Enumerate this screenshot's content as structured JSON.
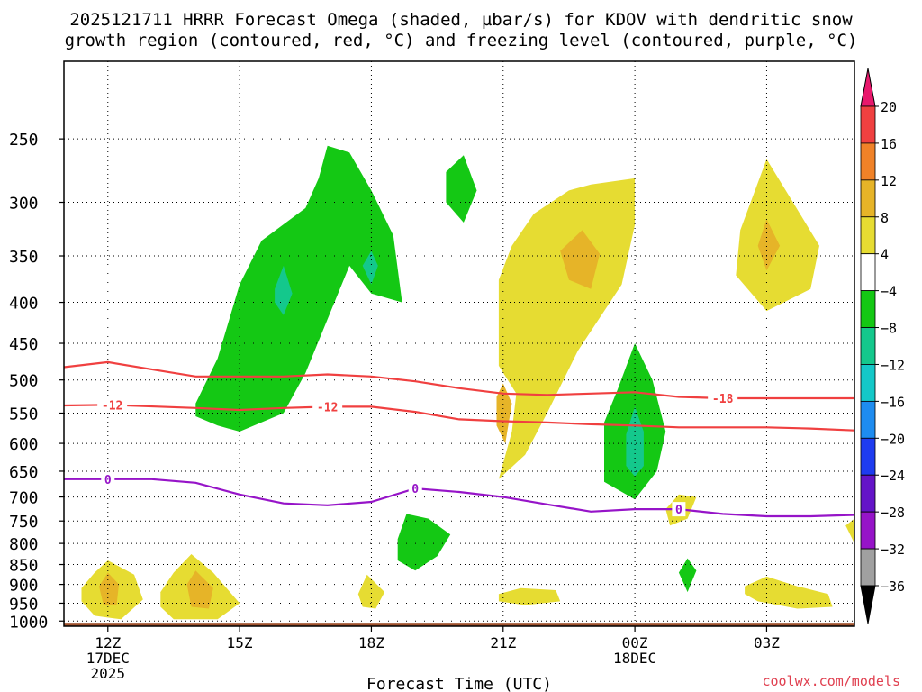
{
  "title_line1": "2025121711 HRRR Forecast Omega (shaded, µbar/s) for KDOV with dendritic snow",
  "title_line2": "growth region (contoured, red, °C) and freezing level (contoured, purple, °C)",
  "credit": "coolwx.com/models",
  "chart_data": {
    "type": "time-height cross section (filled contour + line contours)",
    "xlabel": "Forecast Time (UTC)",
    "ylabel": "",
    "x_ticks": [
      {
        "hour": 0,
        "label": "12Z",
        "sub1": "17DEC",
        "sub2": "2025"
      },
      {
        "hour": 3,
        "label": "15Z",
        "sub1": "",
        "sub2": ""
      },
      {
        "hour": 6,
        "label": "18Z",
        "sub1": "",
        "sub2": ""
      },
      {
        "hour": 9,
        "label": "21Z",
        "sub1": "",
        "sub2": ""
      },
      {
        "hour": 12,
        "label": "00Z",
        "sub1": "18DEC",
        "sub2": ""
      },
      {
        "hour": 15,
        "label": "03Z",
        "sub1": "",
        "sub2": ""
      }
    ],
    "xlim_hours": [
      -1,
      17
    ],
    "y_ticks_hPa": [
      250,
      300,
      350,
      400,
      450,
      500,
      550,
      600,
      650,
      700,
      750,
      800,
      850,
      900,
      950,
      1000
    ],
    "ylim_hPa": [
      1015,
      200
    ],
    "y_scale": "log-pressure",
    "grid": true,
    "colorbar": {
      "levels": [
        20,
        16,
        12,
        8,
        4,
        -4,
        -8,
        -12,
        -16,
        -20,
        -24,
        -28,
        -32,
        -36
      ],
      "colors": [
        "#e8186c",
        "#f04040",
        "#f08228",
        "#e6b428",
        "#e6dc32",
        "#ffffff",
        "#14c814",
        "#14c88c",
        "#14c8c8",
        "#1e8cf0",
        "#1e3cf0",
        "#6414c8",
        "#9614c8",
        "#a0a0a0",
        "#000000"
      ]
    },
    "omega_regions": [
      {
        "name": "A",
        "category": "-8 to -4",
        "color": "#14c814",
        "points": [
          [
            2.0,
            535
          ],
          [
            2.5,
            470
          ],
          [
            3.0,
            380
          ],
          [
            3.5,
            335
          ],
          [
            4.5,
            305
          ],
          [
            4.8,
            280
          ],
          [
            5.0,
            255
          ],
          [
            5.5,
            260
          ],
          [
            6.0,
            290
          ],
          [
            6.5,
            330
          ],
          [
            6.7,
            400
          ],
          [
            6.0,
            390
          ],
          [
            5.5,
            360
          ],
          [
            5.0,
            420
          ],
          [
            4.5,
            490
          ],
          [
            4.0,
            550
          ],
          [
            3.0,
            580
          ],
          [
            2.5,
            570
          ],
          [
            2.0,
            555
          ]
        ]
      },
      {
        "name": "B",
        "category": "-12 to -8",
        "color": "#14c88c",
        "points": [
          [
            3.8,
            385
          ],
          [
            4.0,
            360
          ],
          [
            4.2,
            390
          ],
          [
            4.0,
            415
          ],
          [
            3.8,
            400
          ]
        ]
      },
      {
        "name": "C",
        "category": "-12 to -8",
        "color": "#14c88c",
        "points": [
          [
            5.8,
            360
          ],
          [
            6.0,
            345
          ],
          [
            6.15,
            360
          ],
          [
            6.0,
            380
          ]
        ]
      },
      {
        "name": "D",
        "category": "-8 to -4",
        "color": "#14c814",
        "points": [
          [
            7.7,
            275
          ],
          [
            8.1,
            262
          ],
          [
            8.4,
            290
          ],
          [
            8.1,
            318
          ],
          [
            7.7,
            300
          ]
        ]
      },
      {
        "name": "E",
        "category": "4 to 8",
        "color": "#e6dc32",
        "points": [
          [
            8.9,
            665
          ],
          [
            9.2,
            580
          ],
          [
            9.3,
            520
          ],
          [
            8.9,
            480
          ],
          [
            8.9,
            375
          ],
          [
            9.2,
            340
          ],
          [
            9.7,
            310
          ],
          [
            10.5,
            290
          ],
          [
            11.0,
            285
          ],
          [
            12.0,
            280
          ],
          [
            12.0,
            320
          ],
          [
            11.7,
            380
          ],
          [
            10.7,
            460
          ],
          [
            10.0,
            550
          ],
          [
            9.5,
            620
          ]
        ]
      },
      {
        "name": "F",
        "category": "8 to 12",
        "color": "#e6b428",
        "points": [
          [
            10.3,
            345
          ],
          [
            10.8,
            325
          ],
          [
            11.2,
            348
          ],
          [
            11.0,
            385
          ],
          [
            10.5,
            375
          ]
        ]
      },
      {
        "name": "G",
        "category": "8 to 12",
        "color": "#e6b428",
        "points": [
          [
            8.85,
            525
          ],
          [
            9.0,
            505
          ],
          [
            9.2,
            535
          ],
          [
            9.05,
            600
          ],
          [
            8.85,
            570
          ]
        ]
      },
      {
        "name": "H",
        "category": "-8 to -4",
        "color": "#14c814",
        "points": [
          [
            11.3,
            565
          ],
          [
            11.6,
            515
          ],
          [
            12.0,
            450
          ],
          [
            12.4,
            500
          ],
          [
            12.7,
            580
          ],
          [
            12.5,
            650
          ],
          [
            12.0,
            705
          ],
          [
            11.3,
            670
          ]
        ]
      },
      {
        "name": "I",
        "category": "-12 to -8",
        "color": "#14c88c",
        "points": [
          [
            11.8,
            585
          ],
          [
            12.0,
            540
          ],
          [
            12.2,
            580
          ],
          [
            12.2,
            640
          ],
          [
            12.0,
            660
          ],
          [
            11.8,
            640
          ]
        ]
      },
      {
        "name": "J",
        "category": "4 to 8",
        "color": "#e6dc32",
        "points": [
          [
            14.4,
            325
          ],
          [
            15.0,
            265
          ],
          [
            15.6,
            300
          ],
          [
            16.2,
            340
          ],
          [
            16.0,
            385
          ],
          [
            15.0,
            410
          ],
          [
            14.3,
            370
          ]
        ]
      },
      {
        "name": "K",
        "category": "8 to 12",
        "color": "#e6b428",
        "points": [
          [
            14.8,
            340
          ],
          [
            15.0,
            315
          ],
          [
            15.3,
            340
          ],
          [
            15.0,
            365
          ]
        ]
      },
      {
        "name": "L",
        "category": "-8 to -4",
        "color": "#14c814",
        "points": [
          [
            6.6,
            790
          ],
          [
            6.8,
            735
          ],
          [
            7.3,
            745
          ],
          [
            7.8,
            780
          ],
          [
            7.5,
            830
          ],
          [
            7.0,
            865
          ],
          [
            6.6,
            840
          ]
        ]
      },
      {
        "name": "M",
        "category": "4 to 8",
        "color": "#e6dc32",
        "points": [
          [
            12.7,
            725
          ],
          [
            13.0,
            695
          ],
          [
            13.4,
            700
          ],
          [
            13.2,
            745
          ],
          [
            12.8,
            760
          ]
        ]
      },
      {
        "name": "N",
        "category": "-8 to -4",
        "color": "#14c814",
        "points": [
          [
            13.0,
            870
          ],
          [
            13.2,
            835
          ],
          [
            13.4,
            865
          ],
          [
            13.2,
            920
          ]
        ]
      },
      {
        "name": "O",
        "category": "4 to 8",
        "color": "#e6dc32",
        "points": [
          [
            16.8,
            760
          ],
          [
            17.0,
            745
          ],
          [
            17.0,
            800
          ]
        ]
      },
      {
        "name": "P",
        "category": "4 to 8",
        "color": "#e6dc32",
        "points": [
          [
            -0.6,
            910
          ],
          [
            -0.3,
            870
          ],
          [
            0.0,
            840
          ],
          [
            0.6,
            875
          ],
          [
            0.8,
            940
          ],
          [
            0.3,
            995
          ],
          [
            -0.3,
            985
          ],
          [
            -0.6,
            945
          ]
        ]
      },
      {
        "name": "Q",
        "category": "8 to 12",
        "color": "#e6b428",
        "points": [
          [
            -0.2,
            905
          ],
          [
            0.0,
            870
          ],
          [
            0.25,
            900
          ],
          [
            0.2,
            955
          ],
          [
            -0.1,
            955
          ]
        ]
      },
      {
        "name": "R",
        "category": "4 to 8",
        "color": "#e6dc32",
        "points": [
          [
            1.2,
            920
          ],
          [
            1.5,
            870
          ],
          [
            1.9,
            825
          ],
          [
            2.4,
            870
          ],
          [
            3.0,
            950
          ],
          [
            2.5,
            995
          ],
          [
            1.5,
            995
          ],
          [
            1.2,
            960
          ]
        ]
      },
      {
        "name": "S",
        "category": "8 to 12",
        "color": "#e6b428",
        "points": [
          [
            1.8,
            900
          ],
          [
            2.0,
            865
          ],
          [
            2.4,
            910
          ],
          [
            2.3,
            965
          ],
          [
            1.9,
            960
          ]
        ]
      },
      {
        "name": "T",
        "category": "4 to 8",
        "color": "#e6dc32",
        "points": [
          [
            5.7,
            925
          ],
          [
            5.9,
            875
          ],
          [
            6.3,
            920
          ],
          [
            6.1,
            965
          ],
          [
            5.8,
            960
          ]
        ]
      },
      {
        "name": "U",
        "category": "4 to 8",
        "color": "#e6dc32",
        "points": [
          [
            8.9,
            925
          ],
          [
            9.4,
            910
          ],
          [
            10.2,
            915
          ],
          [
            10.3,
            945
          ],
          [
            9.5,
            955
          ],
          [
            8.9,
            945
          ]
        ]
      },
      {
        "name": "V",
        "category": "4 to 8",
        "color": "#e6dc32",
        "points": [
          [
            14.5,
            905
          ],
          [
            15.0,
            880
          ],
          [
            15.7,
            905
          ],
          [
            16.4,
            925
          ],
          [
            16.5,
            960
          ],
          [
            15.7,
            965
          ],
          [
            14.8,
            945
          ],
          [
            14.5,
            925
          ]
        ]
      }
    ],
    "red_contours": [
      {
        "label": "",
        "points": [
          [
            -1,
            482
          ],
          [
            0,
            475
          ],
          [
            1,
            485
          ],
          [
            2,
            495
          ],
          [
            4,
            495
          ],
          [
            5,
            492
          ],
          [
            6,
            495
          ],
          [
            7,
            502
          ],
          [
            8,
            512
          ],
          [
            9,
            520
          ],
          [
            10,
            522
          ],
          [
            11,
            520
          ],
          [
            12,
            518
          ],
          [
            13,
            525
          ],
          [
            14,
            527
          ],
          [
            15,
            527
          ],
          [
            16,
            527
          ],
          [
            17,
            527
          ]
        ]
      },
      {
        "label": "-12",
        "points": [
          [
            -1,
            538
          ],
          [
            0,
            537
          ],
          [
            2,
            542
          ],
          [
            3,
            545
          ],
          [
            4,
            542
          ],
          [
            5,
            540
          ],
          [
            6,
            540
          ],
          [
            7,
            548
          ],
          [
            8,
            560
          ],
          [
            9,
            563
          ],
          [
            10,
            565
          ],
          [
            11,
            568
          ],
          [
            12,
            570
          ],
          [
            13,
            573
          ],
          [
            14,
            573
          ],
          [
            15,
            573
          ],
          [
            16,
            575
          ],
          [
            17,
            578
          ]
        ]
      }
    ],
    "red_labels": [
      {
        "text": "-12",
        "hour": 0.1,
        "hPa": 537
      },
      {
        "text": "-12",
        "hour": 5.0,
        "hPa": 540
      },
      {
        "text": "-18",
        "hour": 14.0,
        "hPa": 527
      }
    ],
    "purple_contour": [
      [
        -1,
        665
      ],
      [
        0,
        665
      ],
      [
        1,
        665
      ],
      [
        2,
        672
      ],
      [
        3,
        695
      ],
      [
        4,
        713
      ],
      [
        5,
        717
      ],
      [
        6,
        710
      ],
      [
        7,
        683
      ],
      [
        8,
        690
      ],
      [
        9,
        700
      ],
      [
        10,
        715
      ],
      [
        11,
        730
      ],
      [
        12,
        725
      ],
      [
        13,
        725
      ],
      [
        14,
        735
      ],
      [
        15,
        740
      ],
      [
        16,
        740
      ],
      [
        17,
        737
      ]
    ],
    "purple_labels": [
      {
        "text": "0",
        "hour": 0.0,
        "hPa": 665
      },
      {
        "text": "0",
        "hour": 7.0,
        "hPa": 683
      },
      {
        "text": "0",
        "hour": 13.0,
        "hPa": 725
      }
    ],
    "terrain_top_hPa": 1005
  }
}
